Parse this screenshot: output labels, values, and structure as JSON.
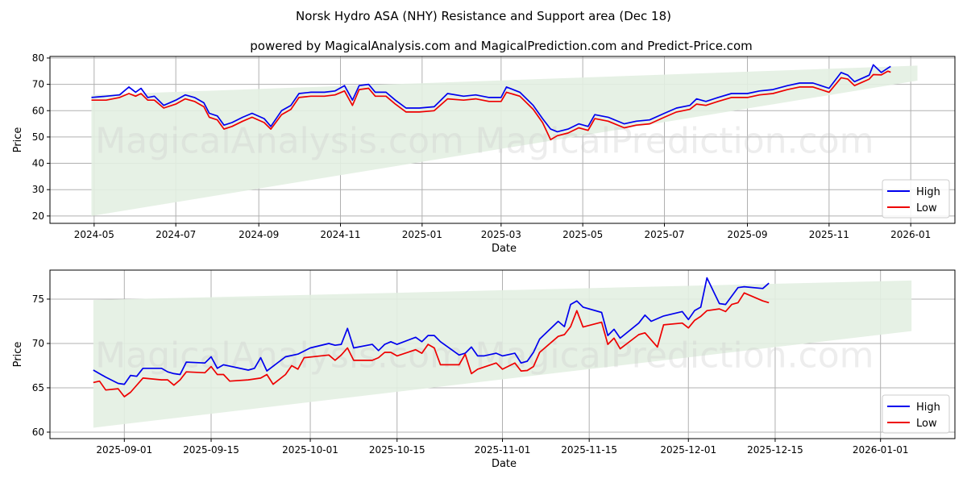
{
  "title": "Norsk Hydro ASA (NHY) Resistance and Support area (Dec 18)",
  "subtitle": "powered by MagicalAnalysis.com and MagicalPrediction.com and Predict-Price.com",
  "watermarks": [
    "MagicalAnalysis.com",
    "MagicalPrediction.com"
  ],
  "colors": {
    "high": "#0000ee",
    "low": "#ee0000",
    "band": "#e3efe2",
    "grid": "#b0b0b0"
  },
  "chart_data": [
    {
      "type": "line",
      "xlabel": "Date",
      "ylabel": "Price",
      "xlim": [
        "2024-03-29",
        "2026-02-03"
      ],
      "ylim": [
        17.2,
        80.6
      ],
      "grid": true,
      "legend": "bottom-right",
      "xticks": [
        "2024-05",
        "2024-07",
        "2024-09",
        "2024-11",
        "2025-01",
        "2025-03",
        "2025-05",
        "2025-07",
        "2025-09",
        "2025-11",
        "2026-01"
      ],
      "yticks": [
        20,
        30,
        40,
        50,
        60,
        70,
        80
      ],
      "band": {
        "x": [
          "2024-04-29",
          "2026-01-06"
        ],
        "upper": [
          66.0,
          77.1
        ],
        "lower": [
          20.0,
          71.4
        ]
      },
      "series": [
        {
          "name": "High",
          "x": [
            "2024-04-29",
            "2024-05-10",
            "2024-05-20",
            "2024-05-27",
            "2024-06-01",
            "2024-06-05",
            "2024-06-10",
            "2024-06-15",
            "2024-06-22",
            "2024-07-01",
            "2024-07-08",
            "2024-07-15",
            "2024-07-22",
            "2024-07-26",
            "2024-08-01",
            "2024-08-06",
            "2024-08-12",
            "2024-08-20",
            "2024-08-27",
            "2024-09-05",
            "2024-09-10",
            "2024-09-18",
            "2024-09-25",
            "2024-10-01",
            "2024-10-10",
            "2024-10-20",
            "2024-10-28",
            "2024-11-04",
            "2024-11-10",
            "2024-11-15",
            "2024-11-22",
            "2024-11-27",
            "2024-12-05",
            "2024-12-12",
            "2024-12-20",
            "2024-12-30",
            "2025-01-10",
            "2025-01-20",
            "2025-02-01",
            "2025-02-10",
            "2025-02-20",
            "2025-03-01",
            "2025-03-05",
            "2025-03-15",
            "2025-03-25",
            "2025-04-01",
            "2025-04-07",
            "2025-04-12",
            "2025-04-20",
            "2025-04-28",
            "2025-05-05",
            "2025-05-10",
            "2025-05-20",
            "2025-06-01",
            "2025-06-10",
            "2025-06-20",
            "2025-07-01",
            "2025-07-10",
            "2025-07-20",
            "2025-07-25",
            "2025-08-01",
            "2025-08-10",
            "2025-08-20",
            "2025-09-01",
            "2025-09-10",
            "2025-09-20",
            "2025-10-01",
            "2025-10-10",
            "2025-10-20",
            "2025-11-01",
            "2025-11-10",
            "2025-11-15",
            "2025-11-20",
            "2025-12-01",
            "2025-12-04",
            "2025-12-10",
            "2025-12-15",
            "2025-12-17"
          ],
          "y": [
            65,
            65.5,
            66,
            69,
            67,
            68.5,
            65,
            65.5,
            62,
            64,
            66,
            65,
            63,
            59,
            58,
            54.5,
            55.5,
            57.5,
            59,
            57,
            54,
            60,
            62,
            66.5,
            67,
            67,
            67.5,
            69.5,
            64,
            69.5,
            70,
            67,
            67,
            64,
            61,
            61,
            61.5,
            66.5,
            65.5,
            66,
            65,
            65,
            69,
            67,
            62,
            57,
            53,
            52,
            53,
            55,
            54,
            58.5,
            57.5,
            55,
            56,
            56.5,
            59,
            61,
            62,
            64.5,
            63.5,
            65,
            66.5,
            66.5,
            67.5,
            68,
            69.5,
            70.5,
            70.5,
            68.5,
            74.5,
            73.5,
            71,
            73.5,
            77.4,
            74.5,
            76.2,
            76.8
          ]
        },
        {
          "name": "Low",
          "x": [
            "2024-04-29",
            "2024-05-10",
            "2024-05-20",
            "2024-05-27",
            "2024-06-01",
            "2024-06-05",
            "2024-06-10",
            "2024-06-15",
            "2024-06-22",
            "2024-07-01",
            "2024-07-08",
            "2024-07-15",
            "2024-07-22",
            "2024-07-26",
            "2024-08-01",
            "2024-08-06",
            "2024-08-12",
            "2024-08-20",
            "2024-08-27",
            "2024-09-05",
            "2024-09-10",
            "2024-09-18",
            "2024-09-25",
            "2024-10-01",
            "2024-10-10",
            "2024-10-20",
            "2024-10-28",
            "2024-11-04",
            "2024-11-10",
            "2024-11-15",
            "2024-11-22",
            "2024-11-27",
            "2024-12-05",
            "2024-12-12",
            "2024-12-20",
            "2024-12-30",
            "2025-01-10",
            "2025-01-20",
            "2025-02-01",
            "2025-02-10",
            "2025-02-20",
            "2025-03-01",
            "2025-03-05",
            "2025-03-15",
            "2025-03-25",
            "2025-04-01",
            "2025-04-07",
            "2025-04-12",
            "2025-04-20",
            "2025-04-28",
            "2025-05-05",
            "2025-05-10",
            "2025-05-20",
            "2025-06-01",
            "2025-06-10",
            "2025-06-20",
            "2025-07-01",
            "2025-07-10",
            "2025-07-20",
            "2025-07-25",
            "2025-08-01",
            "2025-08-10",
            "2025-08-20",
            "2025-09-01",
            "2025-09-10",
            "2025-09-20",
            "2025-10-01",
            "2025-10-10",
            "2025-10-20",
            "2025-11-01",
            "2025-11-10",
            "2025-11-15",
            "2025-11-20",
            "2025-12-01",
            "2025-12-04",
            "2025-12-10",
            "2025-12-15",
            "2025-12-17"
          ],
          "y": [
            64,
            64,
            65,
            66.5,
            65.5,
            66.5,
            64,
            64,
            61,
            62.5,
            64.5,
            63.5,
            61.5,
            57.5,
            56.5,
            53,
            54,
            56,
            57.5,
            55.5,
            53,
            58.5,
            60.5,
            65,
            65.5,
            65.5,
            66,
            67.5,
            62,
            68,
            68.5,
            65.5,
            65.5,
            62.5,
            59.5,
            59.5,
            60,
            64.5,
            64,
            64.5,
            63.5,
            63.5,
            67,
            65.5,
            60.5,
            55.5,
            49,
            50.5,
            51.5,
            53.5,
            52.5,
            57,
            56,
            53.5,
            54.5,
            55,
            57.5,
            59.5,
            60.5,
            62.5,
            62,
            63.5,
            65,
            65,
            66,
            66.5,
            68,
            69,
            69,
            67,
            72.5,
            72,
            69.5,
            72,
            73.7,
            73.6,
            75,
            74.6
          ]
        }
      ]
    },
    {
      "type": "line",
      "xlabel": "Date",
      "ylabel": "Price",
      "xlim": [
        "2025-08-20",
        "2026-01-13"
      ],
      "ylim": [
        59.27,
        78.27
      ],
      "grid": true,
      "legend": "bottom-right",
      "xticks": [
        "2025-09-01",
        "2025-09-15",
        "2025-10-01",
        "2025-10-15",
        "2025-11-01",
        "2025-11-15",
        "2025-12-01",
        "2025-12-15",
        "2026-01-01"
      ],
      "yticks": [
        60,
        65,
        70,
        75
      ],
      "band": {
        "x": [
          "2025-08-27",
          "2026-01-06"
        ],
        "upper": [
          74.9,
          77.1
        ],
        "lower": [
          60.5,
          71.4
        ]
      },
      "series": [
        {
          "name": "High",
          "x": [
            "2025-08-27",
            "2025-08-29",
            "2025-08-31",
            "2025-09-01",
            "2025-09-02",
            "2025-09-03",
            "2025-09-04",
            "2025-09-07",
            "2025-09-08",
            "2025-09-09",
            "2025-09-10",
            "2025-09-11",
            "2025-09-14",
            "2025-09-15",
            "2025-09-16",
            "2025-09-17",
            "2025-09-21",
            "2025-09-22",
            "2025-09-23",
            "2025-09-24",
            "2025-09-27",
            "2025-09-29",
            "2025-10-01",
            "2025-10-04",
            "2025-10-05",
            "2025-10-06",
            "2025-10-07",
            "2025-10-08",
            "2025-10-11",
            "2025-10-12",
            "2025-10-13",
            "2025-10-14",
            "2025-10-15",
            "2025-10-18",
            "2025-10-19",
            "2025-10-20",
            "2025-10-21",
            "2025-10-22",
            "2025-10-25",
            "2025-10-26",
            "2025-10-27",
            "2025-10-28",
            "2025-10-29",
            "2025-10-31",
            "2025-11-01",
            "2025-11-03",
            "2025-11-04",
            "2025-11-05",
            "2025-11-06",
            "2025-11-07",
            "2025-11-10",
            "2025-11-11",
            "2025-11-12",
            "2025-11-13",
            "2025-11-14",
            "2025-11-17",
            "2025-11-18",
            "2025-11-19",
            "2025-11-20",
            "2025-11-23",
            "2025-11-24",
            "2025-11-25",
            "2025-11-27",
            "2025-11-30",
            "2025-12-01",
            "2025-12-02",
            "2025-12-03",
            "2025-12-04",
            "2025-12-06",
            "2025-12-07",
            "2025-12-09",
            "2025-12-10",
            "2025-12-13",
            "2025-12-14"
          ],
          "y": [
            67.0,
            66.2,
            65.5,
            65.4,
            66.4,
            66.3,
            67.2,
            67.2,
            66.8,
            66.6,
            66.5,
            67.9,
            67.8,
            68.5,
            67.2,
            67.6,
            67.0,
            67.2,
            68.4,
            66.9,
            68.5,
            68.8,
            69.5,
            70.0,
            69.8,
            69.9,
            71.7,
            69.5,
            69.9,
            69.2,
            69.9,
            70.2,
            69.9,
            70.7,
            70.2,
            70.9,
            70.9,
            70.2,
            68.7,
            68.9,
            69.6,
            68.6,
            68.6,
            68.9,
            68.6,
            68.9,
            67.8,
            68.0,
            69.0,
            70.5,
            72.5,
            71.9,
            74.4,
            74.8,
            74.1,
            73.5,
            70.9,
            71.6,
            70.6,
            72.3,
            73.2,
            72.5,
            73.1,
            73.6,
            72.7,
            73.7,
            74.1,
            77.4,
            74.5,
            74.4,
            76.3,
            76.4,
            76.2,
            76.8
          ]
        },
        {
          "name": "Low",
          "x": [
            "2025-08-27",
            "2025-08-28",
            "2025-08-29",
            "2025-08-31",
            "2025-09-01",
            "2025-09-02",
            "2025-09-04",
            "2025-09-07",
            "2025-09-08",
            "2025-09-09",
            "2025-09-10",
            "2025-09-11",
            "2025-09-14",
            "2025-09-15",
            "2025-09-16",
            "2025-09-17",
            "2025-09-18",
            "2025-09-21",
            "2025-09-23",
            "2025-09-24",
            "2025-09-25",
            "2025-09-27",
            "2025-09-28",
            "2025-09-29",
            "2025-09-30",
            "2025-10-04",
            "2025-10-05",
            "2025-10-06",
            "2025-10-07",
            "2025-10-08",
            "2025-10-11",
            "2025-10-12",
            "2025-10-13",
            "2025-10-14",
            "2025-10-15",
            "2025-10-18",
            "2025-10-19",
            "2025-10-20",
            "2025-10-21",
            "2025-10-22",
            "2025-10-25",
            "2025-10-26",
            "2025-10-27",
            "2025-10-28",
            "2025-10-31",
            "2025-11-01",
            "2025-11-03",
            "2025-11-04",
            "2025-11-05",
            "2025-11-06",
            "2025-11-07",
            "2025-11-10",
            "2025-11-11",
            "2025-11-12",
            "2025-11-13",
            "2025-11-14",
            "2025-11-17",
            "2025-11-18",
            "2025-11-19",
            "2025-11-20",
            "2025-11-23",
            "2025-11-24",
            "2025-11-26",
            "2025-11-27",
            "2025-11-30",
            "2025-12-01",
            "2025-12-02",
            "2025-12-03",
            "2025-12-04",
            "2025-12-06",
            "2025-12-07",
            "2025-12-08",
            "2025-12-09",
            "2025-12-10",
            "2025-12-13",
            "2025-12-14"
          ],
          "y": [
            65.6,
            65.75,
            64.75,
            64.9,
            64.0,
            64.5,
            66.1,
            65.9,
            65.9,
            65.3,
            65.9,
            66.8,
            66.7,
            67.4,
            66.5,
            66.5,
            65.75,
            65.9,
            66.1,
            66.5,
            65.4,
            66.5,
            67.5,
            67.1,
            68.4,
            68.7,
            68.1,
            68.7,
            69.5,
            68.1,
            68.1,
            68.4,
            69.0,
            69.0,
            68.6,
            69.3,
            68.9,
            69.9,
            69.5,
            67.6,
            67.6,
            68.8,
            66.6,
            67.1,
            67.8,
            67.1,
            67.8,
            66.9,
            66.95,
            67.4,
            69.0,
            70.8,
            71.0,
            71.9,
            73.7,
            71.85,
            72.4,
            69.9,
            70.6,
            69.4,
            71.0,
            71.2,
            69.6,
            72.1,
            72.3,
            71.75,
            72.6,
            73.05,
            73.7,
            73.9,
            73.6,
            74.4,
            74.6,
            75.7,
            74.8,
            74.6
          ]
        }
      ]
    }
  ]
}
